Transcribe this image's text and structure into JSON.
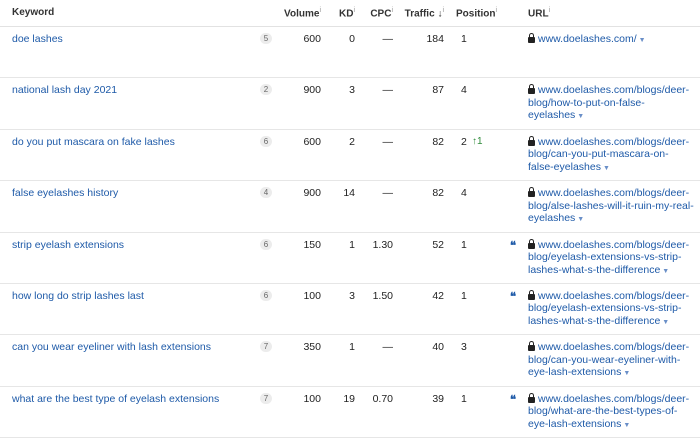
{
  "header": {
    "keyword": "Keyword",
    "volume": "Volume",
    "kd": "KD",
    "cpc": "CPC",
    "traffic": "Traffic",
    "traffic_sort": "↓",
    "position": "Position",
    "url": "URL",
    "info_mark": "i"
  },
  "rows": [
    {
      "keyword": "doe lashes",
      "badge": "5",
      "volume": "600",
      "kd": "0",
      "cpc": "—",
      "traffic": "184",
      "position": "1",
      "change": "",
      "serp": "",
      "url": "www.doelashes.com/"
    },
    {
      "keyword": "national lash day 2021",
      "badge": "2",
      "volume": "900",
      "kd": "3",
      "cpc": "—",
      "traffic": "87",
      "position": "4",
      "change": "",
      "serp": "",
      "url": "www.doelashes.com/blogs/deer-blog/how-to-put-on-false-eyelashes"
    },
    {
      "keyword": "do you put mascara on fake lashes",
      "badge": "6",
      "volume": "600",
      "kd": "2",
      "cpc": "—",
      "traffic": "82",
      "position": "2",
      "change": "↑1",
      "serp": "",
      "url": "www.doelashes.com/blogs/deer-blog/can-you-put-mascara-on-false-eyelashes"
    },
    {
      "keyword": "false eyelashes history",
      "badge": "4",
      "volume": "900",
      "kd": "14",
      "cpc": "—",
      "traffic": "82",
      "position": "4",
      "change": "",
      "serp": "",
      "url": "www.doelashes.com/blogs/deer-blog/alse-lashes-will-it-ruin-my-real-eyelashes"
    },
    {
      "keyword": "strip eyelash extensions",
      "badge": "6",
      "volume": "150",
      "kd": "1",
      "cpc": "1.30",
      "traffic": "52",
      "position": "1",
      "change": "",
      "serp": "❛❛",
      "url": "www.doelashes.com/blogs/deer-blog/eyelash-extensions-vs-strip-lashes-what-s-the-difference"
    },
    {
      "keyword": "how long do strip lashes last",
      "badge": "6",
      "volume": "100",
      "kd": "3",
      "cpc": "1.50",
      "traffic": "42",
      "position": "1",
      "change": "",
      "serp": "❛❛",
      "url": "www.doelashes.com/blogs/deer-blog/eyelash-extensions-vs-strip-lashes-what-s-the-difference"
    },
    {
      "keyword": "can you wear eyeliner with lash extensions",
      "badge": "7",
      "volume": "350",
      "kd": "1",
      "cpc": "—",
      "traffic": "40",
      "position": "3",
      "change": "",
      "serp": "",
      "url": "www.doelashes.com/blogs/deer-blog/can-you-wear-eyeliner-with-eye-lash-extensions"
    },
    {
      "keyword": "what are the best type of eyelash extensions",
      "badge": "7",
      "volume": "100",
      "kd": "19",
      "cpc": "0.70",
      "traffic": "39",
      "position": "1",
      "change": "",
      "serp": "❛❛",
      "url": "www.doelashes.com/blogs/deer-blog/what-are-the-best-types-of-eye-lash-extensions"
    }
  ],
  "icons": {
    "lock": "lock-icon",
    "caret": "caret-down-icon",
    "serp": "featured-snippet-icon"
  },
  "colors": {
    "link": "#1e5aa8",
    "change_up": "#2e8b3a",
    "border": "#e6e6e6"
  },
  "caret_glyph": "▼"
}
